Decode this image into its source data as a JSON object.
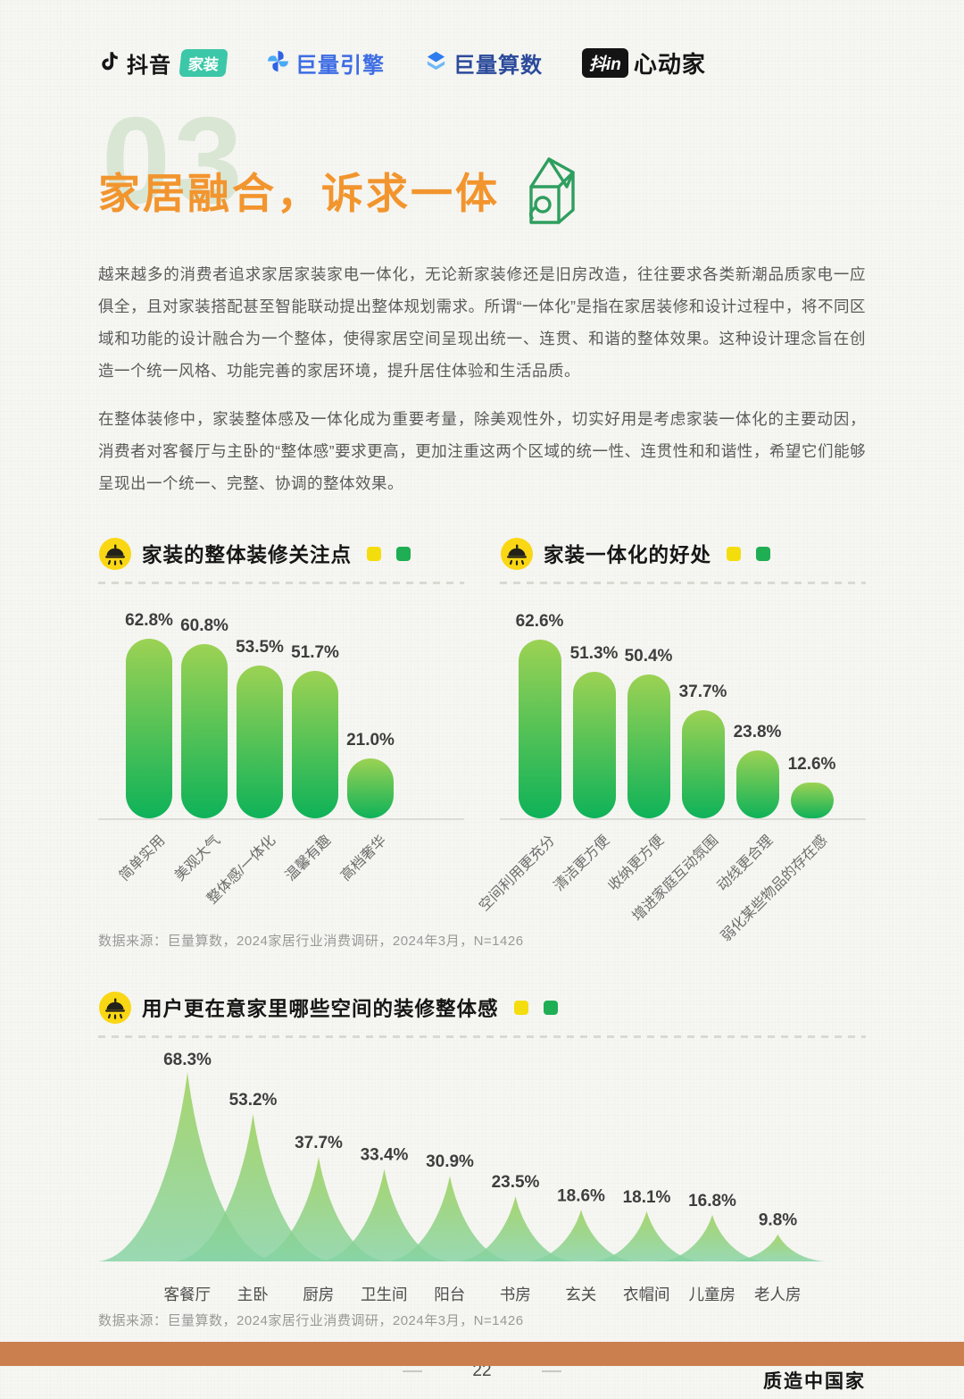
{
  "header": {
    "logos": [
      {
        "text": "抖音",
        "badge": "家装"
      },
      {
        "text": "巨量引擎"
      },
      {
        "text": "巨量算数"
      },
      {
        "box": "抖in",
        "text": "心动家"
      }
    ]
  },
  "section": {
    "number": "03",
    "title": "家居融合，诉求一体",
    "paragraphs": [
      "越来越多的消费者追求家居家装家电一体化，无论新家装修还是旧房改造，往往要求各类新潮品质家电一应俱全，且对家装搭配甚至智能联动提出整体规划需求。所谓“一体化”是指在家居装修和设计过程中，将不同区域和功能的设计融合为一个整体，使得家居空间呈现出统一、连贯、和谐的整体效果。这种设计理念旨在创造一个统一风格、功能完善的家居环境，提升居住体验和生活品质。",
      "在整体装修中，家装整体感及一体化成为重要考量，除美观性外，切实好用是考虑家装一体化的主要动因，消费者对客餐厅与主卧的“整体感”要求更高，更加注重这两个区域的统一性、连贯性和和谐性，希望它们能够呈现出一个统一、完整、协调的整体效果。"
    ]
  },
  "chart_data": [
    {
      "type": "bar",
      "title": "家装的整体装修关注点",
      "categories": [
        "简单实用",
        "美观大气",
        "整体感/一体化",
        "温馨有趣",
        "高档奢华"
      ],
      "values": [
        62.8,
        60.8,
        53.5,
        51.7,
        21.0
      ],
      "unit": "%",
      "ylim": [
        0,
        70
      ],
      "grid": false,
      "legend_position": "title-right"
    },
    {
      "type": "bar",
      "title": "家装一体化的好处",
      "categories": [
        "空间利用更充分",
        "清洁更方便",
        "收纳更方便",
        "增进家庭互动氛围",
        "动线更合理",
        "弱化某些物品的存在感"
      ],
      "values": [
        62.6,
        51.3,
        50.4,
        37.7,
        23.8,
        12.6
      ],
      "unit": "%",
      "ylim": [
        0,
        70
      ],
      "grid": false,
      "legend_position": "title-right"
    },
    {
      "type": "area",
      "title": "用户更在意家里哪些空间的装修整体感",
      "categories": [
        "客餐厅",
        "主卧",
        "厨房",
        "卫生间",
        "阳台",
        "书房",
        "玄关",
        "衣帽间",
        "儿童房",
        "老人房"
      ],
      "values": [
        68.3,
        53.2,
        37.7,
        33.4,
        30.9,
        23.5,
        18.6,
        18.1,
        16.8,
        9.8
      ],
      "unit": "%",
      "ylim": [
        0,
        75
      ],
      "grid": false,
      "legend_position": "title-right"
    }
  ],
  "source_note": "数据来源：巨量算数，2024家居行业消费调研，2024年3月，N=1426",
  "footer": {
    "page_number": "22",
    "brand": "质造中国家"
  },
  "colors": {
    "accent_orange": "#f2952e",
    "bar_top": "#9cd254",
    "bar_bottom": "#0eb259",
    "legend_yellow": "#f4dd0c",
    "legend_green": "#1fae53",
    "badge_teal": "#3cc7a8",
    "house_green": "#2f9e5f",
    "footer_bar": "#cb7e4e"
  }
}
